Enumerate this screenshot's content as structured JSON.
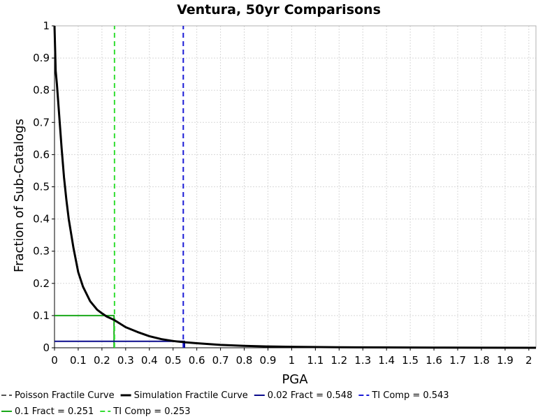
{
  "chart_data": {
    "type": "line",
    "title": "Ventura, 50yr Comparisons",
    "xlabel": "PGA",
    "ylabel": "Fraction of Sub-Catalogs",
    "xlim": [
      0,
      2.03
    ],
    "ylim": [
      0,
      1
    ],
    "grid": true,
    "legend_placement": "bottom",
    "x_ticks": [
      "0",
      "0.1",
      "0.2",
      "0.3",
      "0.4",
      "0.5",
      "0.6",
      "0.7",
      "0.8",
      "0.9",
      "1",
      "1.1",
      "1.2",
      "1.3",
      "1.4",
      "1.5",
      "1.6",
      "1.7",
      "1.8",
      "1.9",
      "2"
    ],
    "y_ticks": [
      "0",
      "0.1",
      "0.2",
      "0.3",
      "0.4",
      "0.5",
      "0.6",
      "0.7",
      "0.8",
      "0.9",
      "1"
    ],
    "series": [
      {
        "name": "Poisson Fractile Curve",
        "color": "#555555",
        "style": "dashed",
        "x": [],
        "y": []
      },
      {
        "name": "Simulation Fractile Curve",
        "color": "#000000",
        "style": "solid",
        "x": [
          0,
          0.005,
          0.01,
          0.02,
          0.03,
          0.04,
          0.05,
          0.06,
          0.08,
          0.1,
          0.12,
          0.15,
          0.18,
          0.2,
          0.22,
          0.25,
          0.3,
          0.35,
          0.4,
          0.45,
          0.5,
          0.55,
          0.6,
          0.7,
          0.8,
          0.9,
          1.0,
          1.2,
          1.4,
          1.6,
          1.8,
          2.03
        ],
        "y": [
          1.0,
          0.86,
          0.82,
          0.72,
          0.62,
          0.53,
          0.46,
          0.4,
          0.31,
          0.235,
          0.19,
          0.145,
          0.118,
          0.107,
          0.097,
          0.087,
          0.064,
          0.049,
          0.036,
          0.027,
          0.021,
          0.017,
          0.014,
          0.009,
          0.006,
          0.004,
          0.003,
          0.0017,
          0.001,
          0.0006,
          0.0003,
          0.0001
        ]
      },
      {
        "name": "0.02 Fract = 0.548",
        "color": "#0a0a8c",
        "style": "solid",
        "x": [
          0,
          0.548,
          0.548
        ],
        "y": [
          0.02,
          0.02,
          0
        ]
      },
      {
        "name": "TI Comp = 0.543",
        "color": "#1a1ad6",
        "style": "dashed",
        "x": [
          0.543,
          0.543
        ],
        "y": [
          0,
          1
        ]
      },
      {
        "name": "0.1 Fract = 0.251",
        "color": "#1aa81a",
        "style": "solid",
        "x": [
          0,
          0.251,
          0.251
        ],
        "y": [
          0.1,
          0.1,
          0
        ]
      },
      {
        "name": "TI Comp = 0.253",
        "color": "#33dd33",
        "style": "dashed",
        "x": [
          0.253,
          0.253
        ],
        "y": [
          0,
          1
        ]
      }
    ]
  }
}
